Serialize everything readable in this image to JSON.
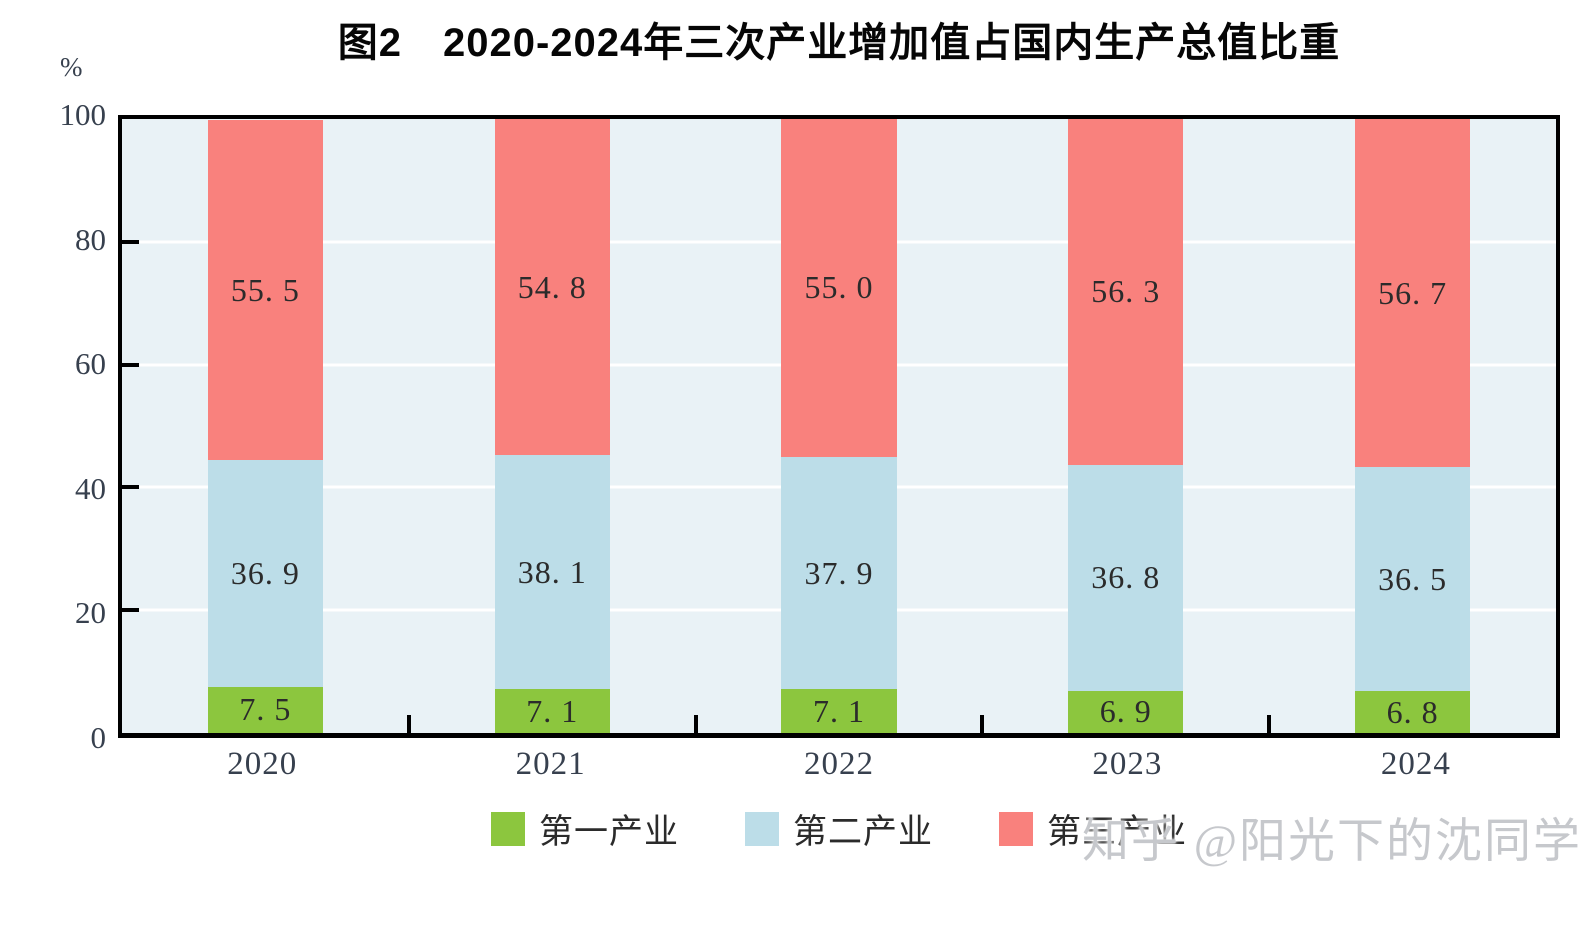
{
  "header": {
    "title": "图2　2020-2024年三次产业增加值占国内生产总值比重"
  },
  "chart_data": {
    "type": "bar",
    "stacked": true,
    "title": "图2　2020-2024年三次产业增加值占国内生产总值比重",
    "ylabel": "%",
    "xlabel": "",
    "ylim": [
      0,
      100
    ],
    "ytick_values": [
      0,
      20,
      40,
      60,
      80,
      100
    ],
    "ytick_labels": [
      "0",
      "20",
      "40",
      "60",
      "80",
      "100"
    ],
    "gridline_values": [
      20,
      40,
      60,
      80
    ],
    "grid_on": true,
    "categories": [
      "2020",
      "2021",
      "2022",
      "2023",
      "2024"
    ],
    "series": [
      {
        "name": "第一产业",
        "color": "#8CC63E",
        "values": [
          7.5,
          7.1,
          7.1,
          6.9,
          6.8
        ],
        "labels": [
          "7. 5",
          "7. 1",
          "7. 1",
          "6. 9",
          "6. 8"
        ]
      },
      {
        "name": "第二产业",
        "color": "#BCDDE8",
        "values": [
          36.9,
          38.1,
          37.9,
          36.8,
          36.5
        ],
        "labels": [
          "36. 9",
          "38. 1",
          "37. 9",
          "36. 8",
          "36. 5"
        ]
      },
      {
        "name": "第三产业",
        "color": "#F9817D",
        "values": [
          55.5,
          54.8,
          55.0,
          56.3,
          56.7
        ],
        "labels": [
          "55. 5",
          "54. 8",
          "55. 0",
          "56. 3",
          "56. 7"
        ]
      }
    ],
    "legend_position": "bottom",
    "colors": {
      "plot_background": "#E9F2F6",
      "gridline": "#FFFFFF",
      "frame": "#000000",
      "axis_text": "#37404E",
      "data_label_text": "#2B2B2B"
    }
  },
  "watermark": {
    "text": "知乎 @阳光下的沈同学"
  }
}
